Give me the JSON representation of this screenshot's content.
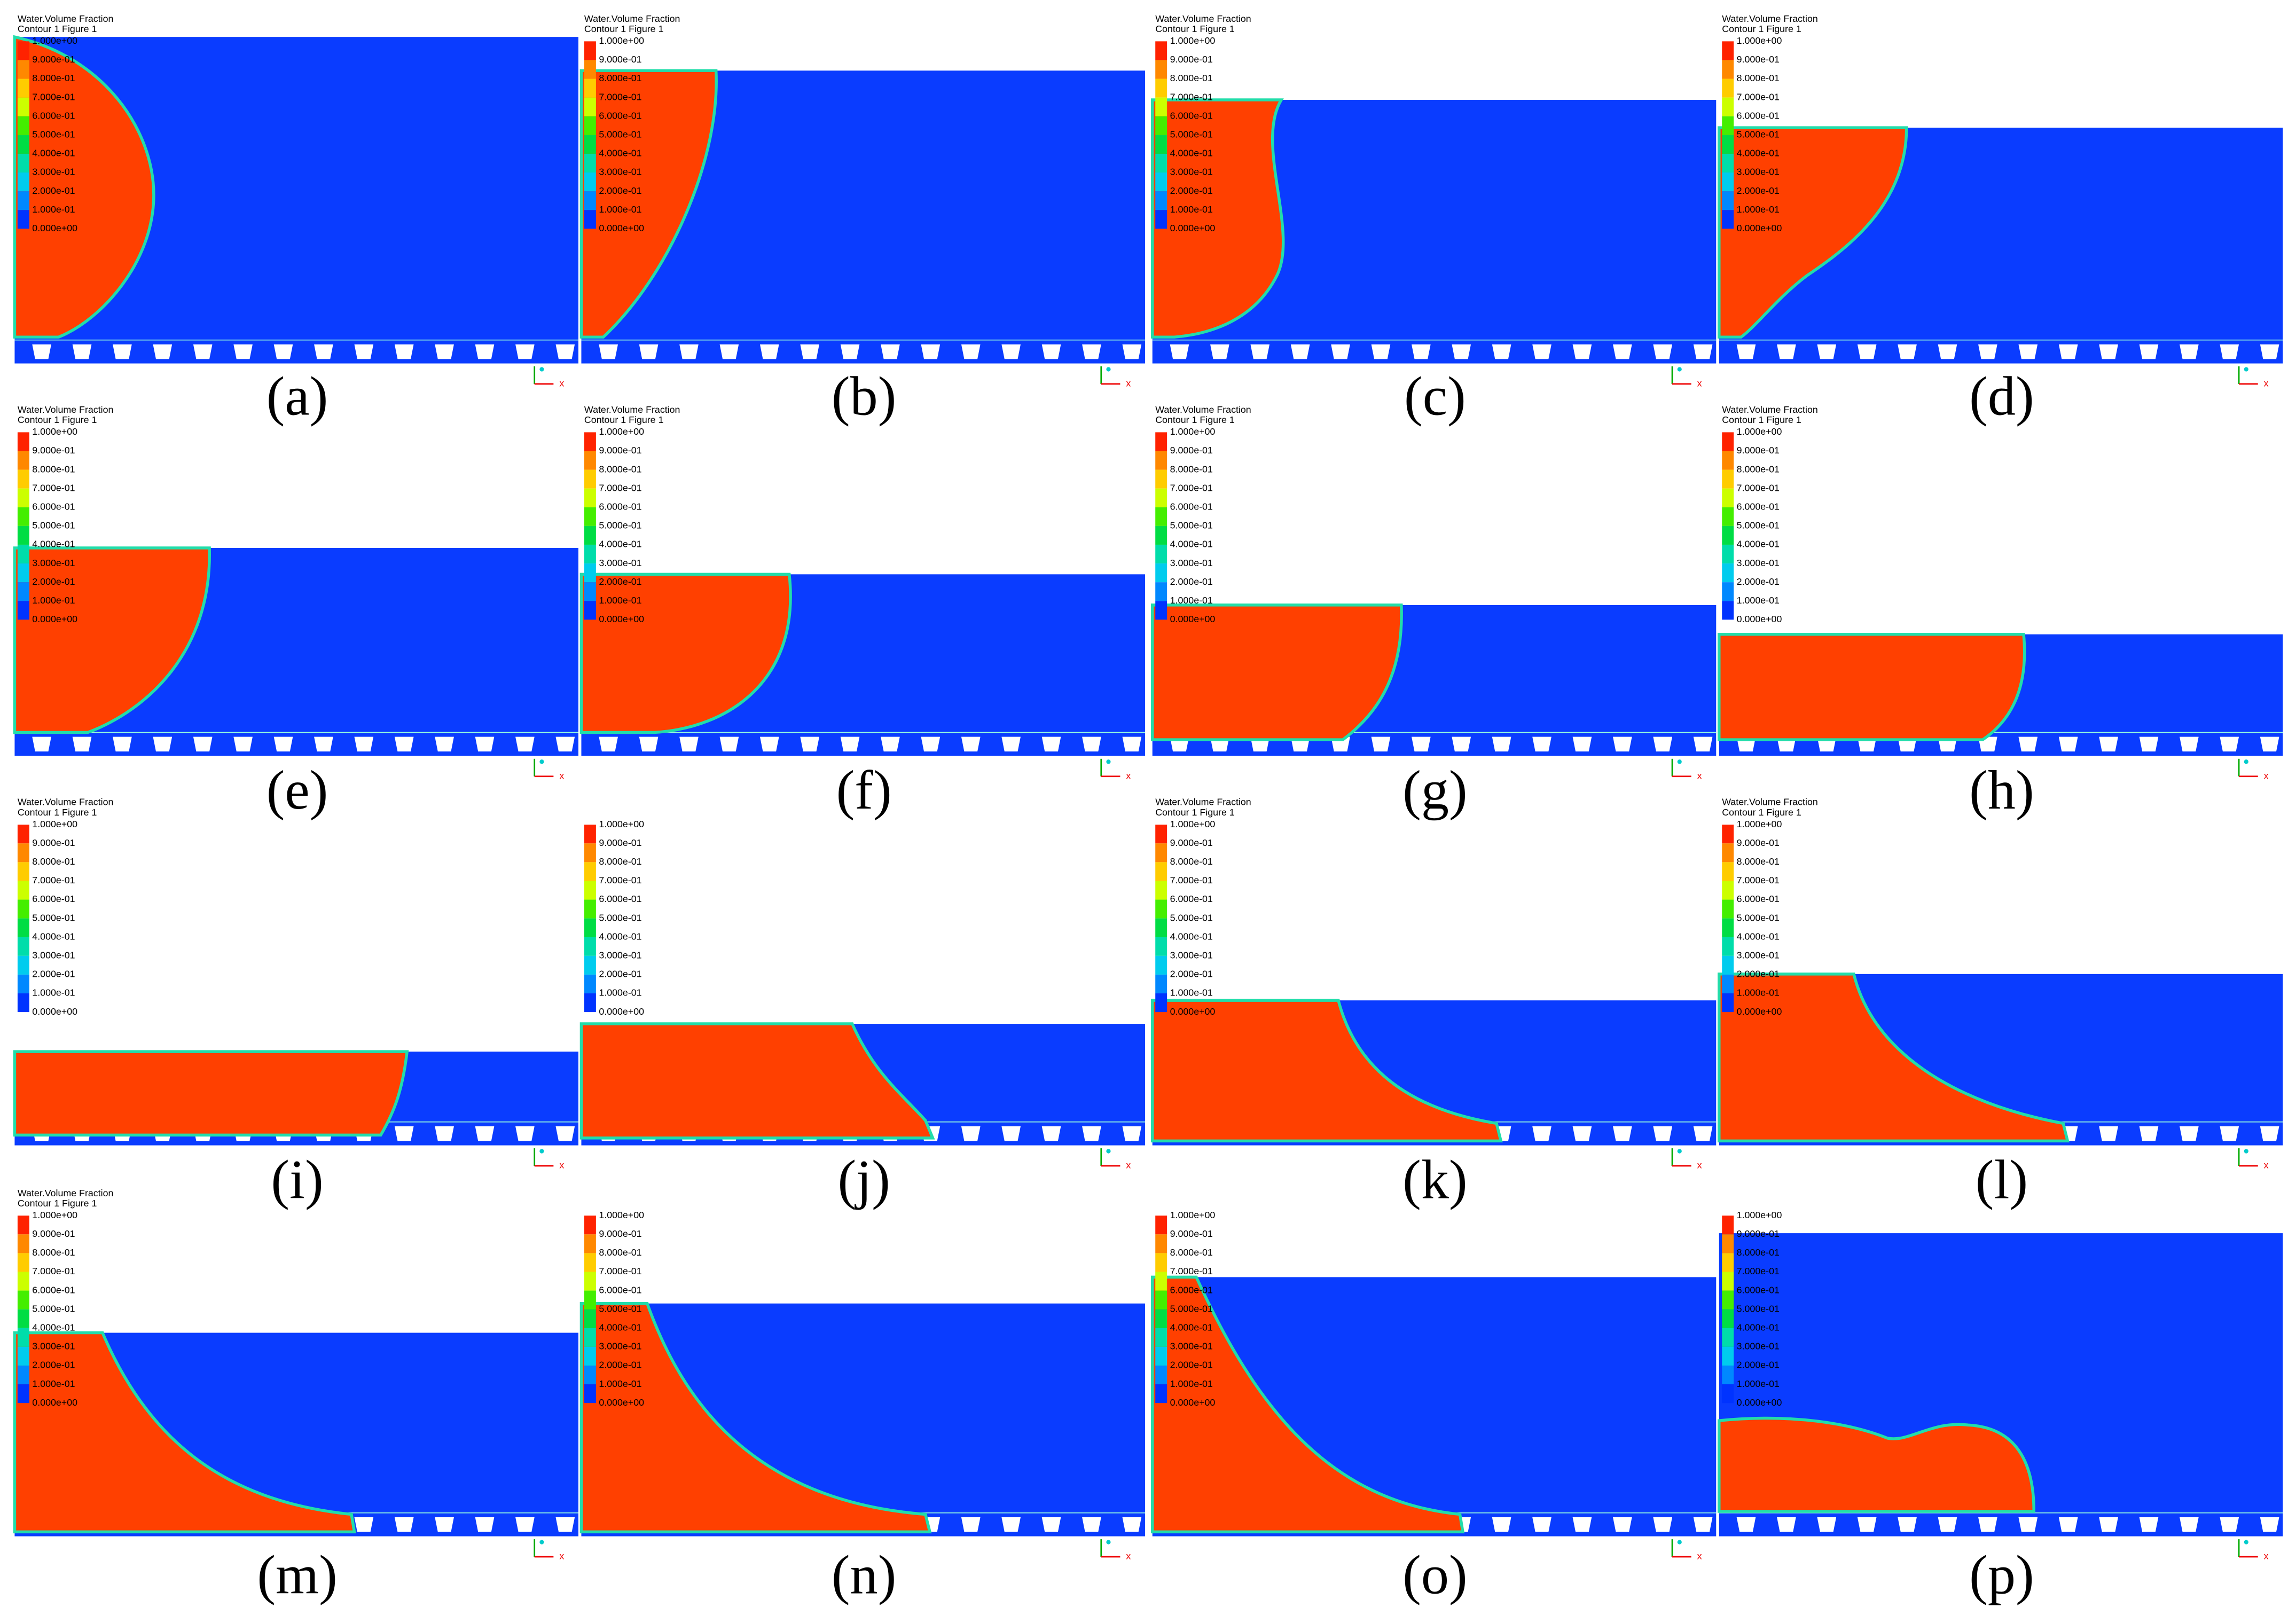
{
  "legend": {
    "title": "Water.Volume Fraction",
    "subtitle": "Contour 1 Figure 1",
    "levels": [
      "1.000e+00",
      "9.000e-01",
      "8.000e-01",
      "7.000e-01",
      "6.000e-01",
      "5.000e-01",
      "4.000e-01",
      "3.000e-01",
      "2.000e-01",
      "1.000e-01",
      "0.000e+00"
    ]
  },
  "axis_label": "x",
  "panels": [
    {
      "label": "(a)"
    },
    {
      "label": "(b)"
    },
    {
      "label": "(c)"
    },
    {
      "label": "(d)"
    },
    {
      "label": "(e)"
    },
    {
      "label": "(f)"
    },
    {
      "label": "(g)"
    },
    {
      "label": "(h)"
    },
    {
      "label": "(i)"
    },
    {
      "label": "(j)"
    },
    {
      "label": "(k)"
    },
    {
      "label": "(l)"
    },
    {
      "label": "(m)"
    },
    {
      "label": "(n)"
    },
    {
      "label": "(o)"
    },
    {
      "label": "(p)"
    }
  ]
}
